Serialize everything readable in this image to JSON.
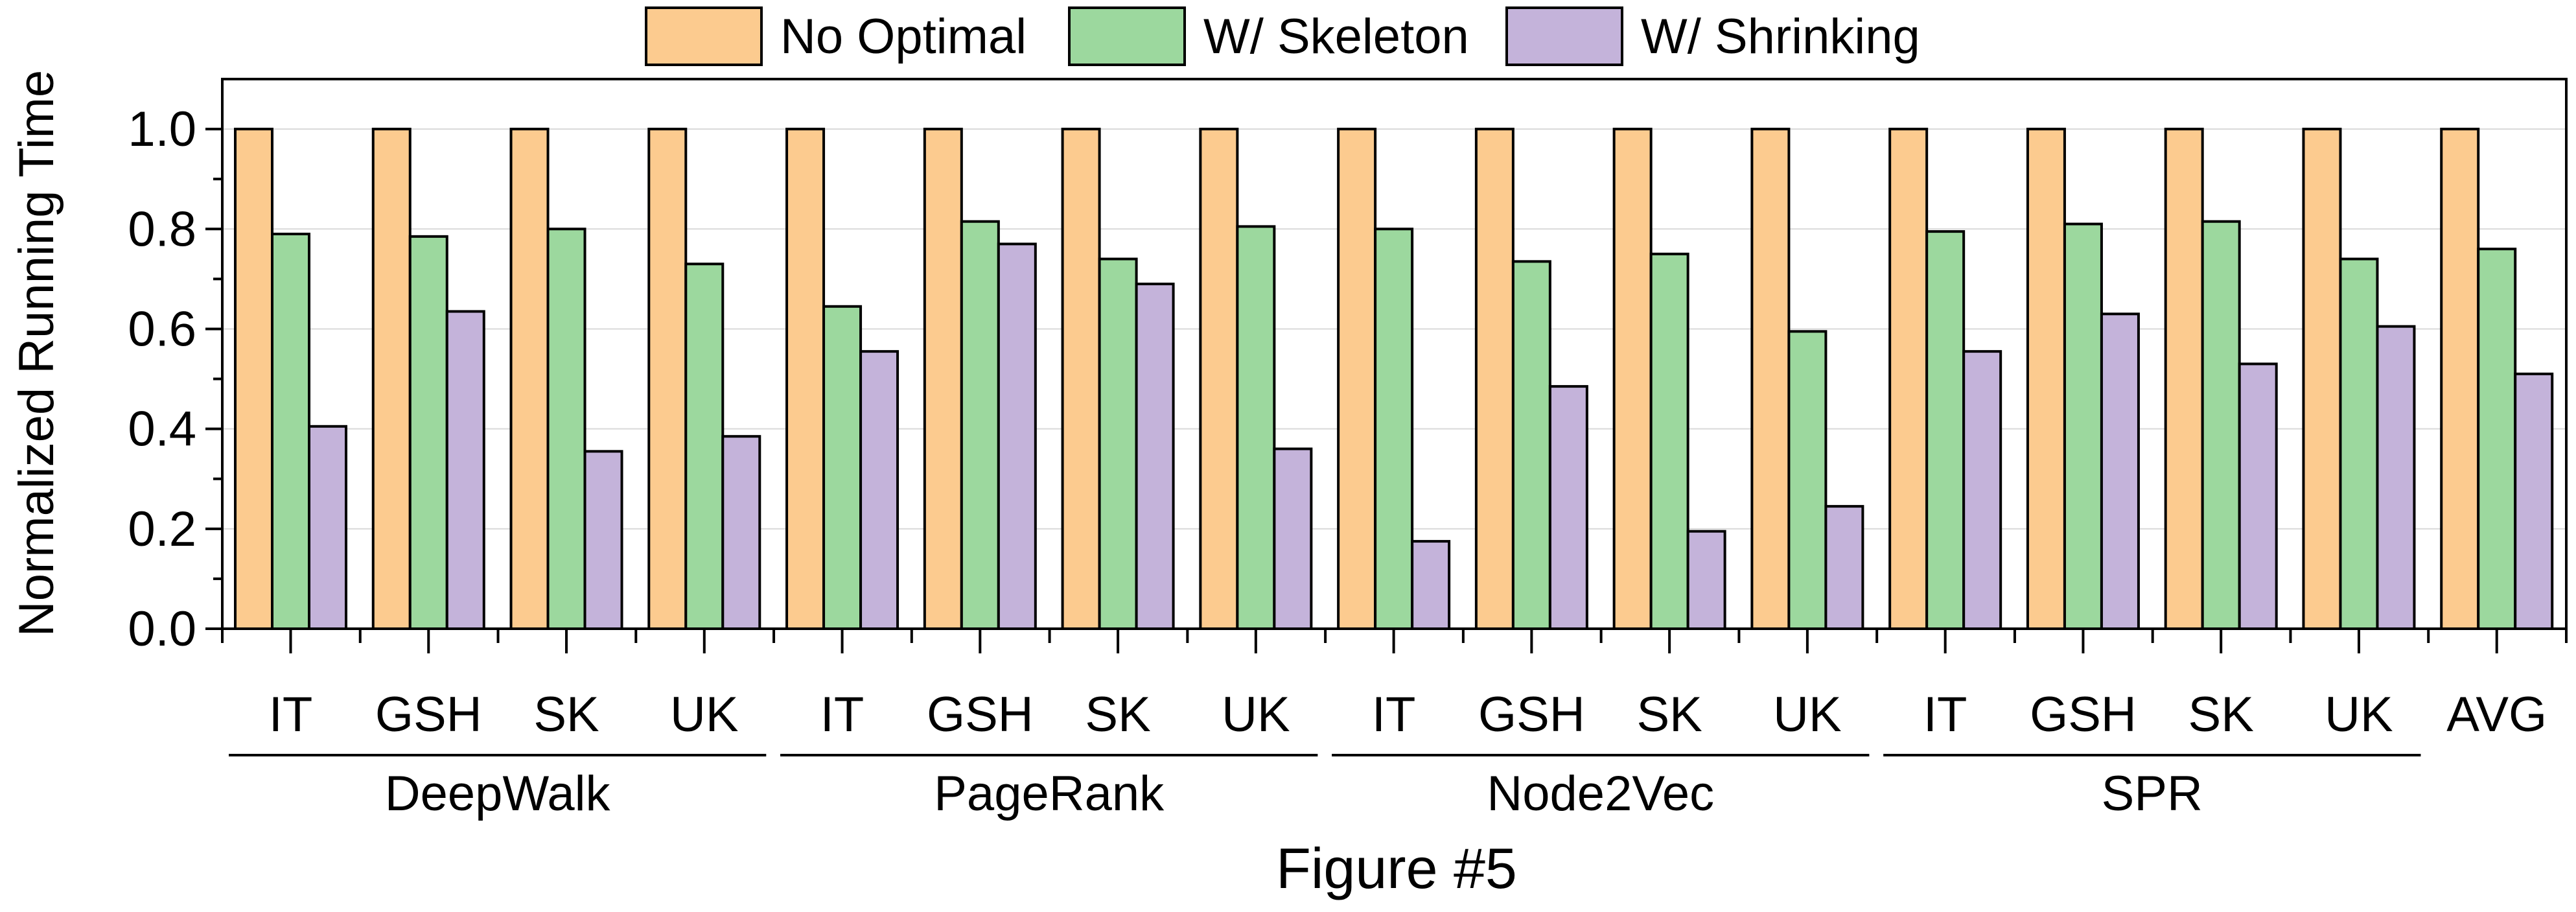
{
  "chart_data": {
    "type": "bar",
    "ylabel": "Normalized Running Time",
    "ylim": [
      0,
      1.1
    ],
    "yticks": [
      "0.0",
      "0.2",
      "0.4",
      "0.6",
      "0.8",
      "1.0"
    ],
    "grid": "horizontal",
    "legend_position": "top",
    "categories": [
      "IT",
      "GSH",
      "SK",
      "UK",
      "IT",
      "GSH",
      "SK",
      "UK",
      "IT",
      "GSH",
      "SK",
      "UK",
      "IT",
      "GSH",
      "SK",
      "UK",
      "AVG"
    ],
    "groups": [
      "DeepWalk",
      "PageRank",
      "Node2Vec",
      "SPR"
    ],
    "series": [
      {
        "name": "No Optimal",
        "color": "#FCCB8F",
        "values": [
          1.0,
          1.0,
          1.0,
          1.0,
          1.0,
          1.0,
          1.0,
          1.0,
          1.0,
          1.0,
          1.0,
          1.0,
          1.0,
          1.0,
          1.0,
          1.0,
          1.0
        ]
      },
      {
        "name": "W/ Skeleton",
        "color": "#9CD89E",
        "values": [
          0.79,
          0.785,
          0.8,
          0.73,
          0.645,
          0.815,
          0.74,
          0.805,
          0.8,
          0.735,
          0.75,
          0.595,
          0.795,
          0.81,
          0.815,
          0.74,
          0.76
        ]
      },
      {
        "name": "W/ Shrinking",
        "color": "#C4B3DA",
        "values": [
          0.405,
          0.635,
          0.355,
          0.385,
          0.555,
          0.77,
          0.69,
          0.36,
          0.175,
          0.485,
          0.195,
          0.245,
          0.555,
          0.63,
          0.53,
          0.605,
          0.51
        ]
      }
    ]
  },
  "caption": "Figure #5"
}
